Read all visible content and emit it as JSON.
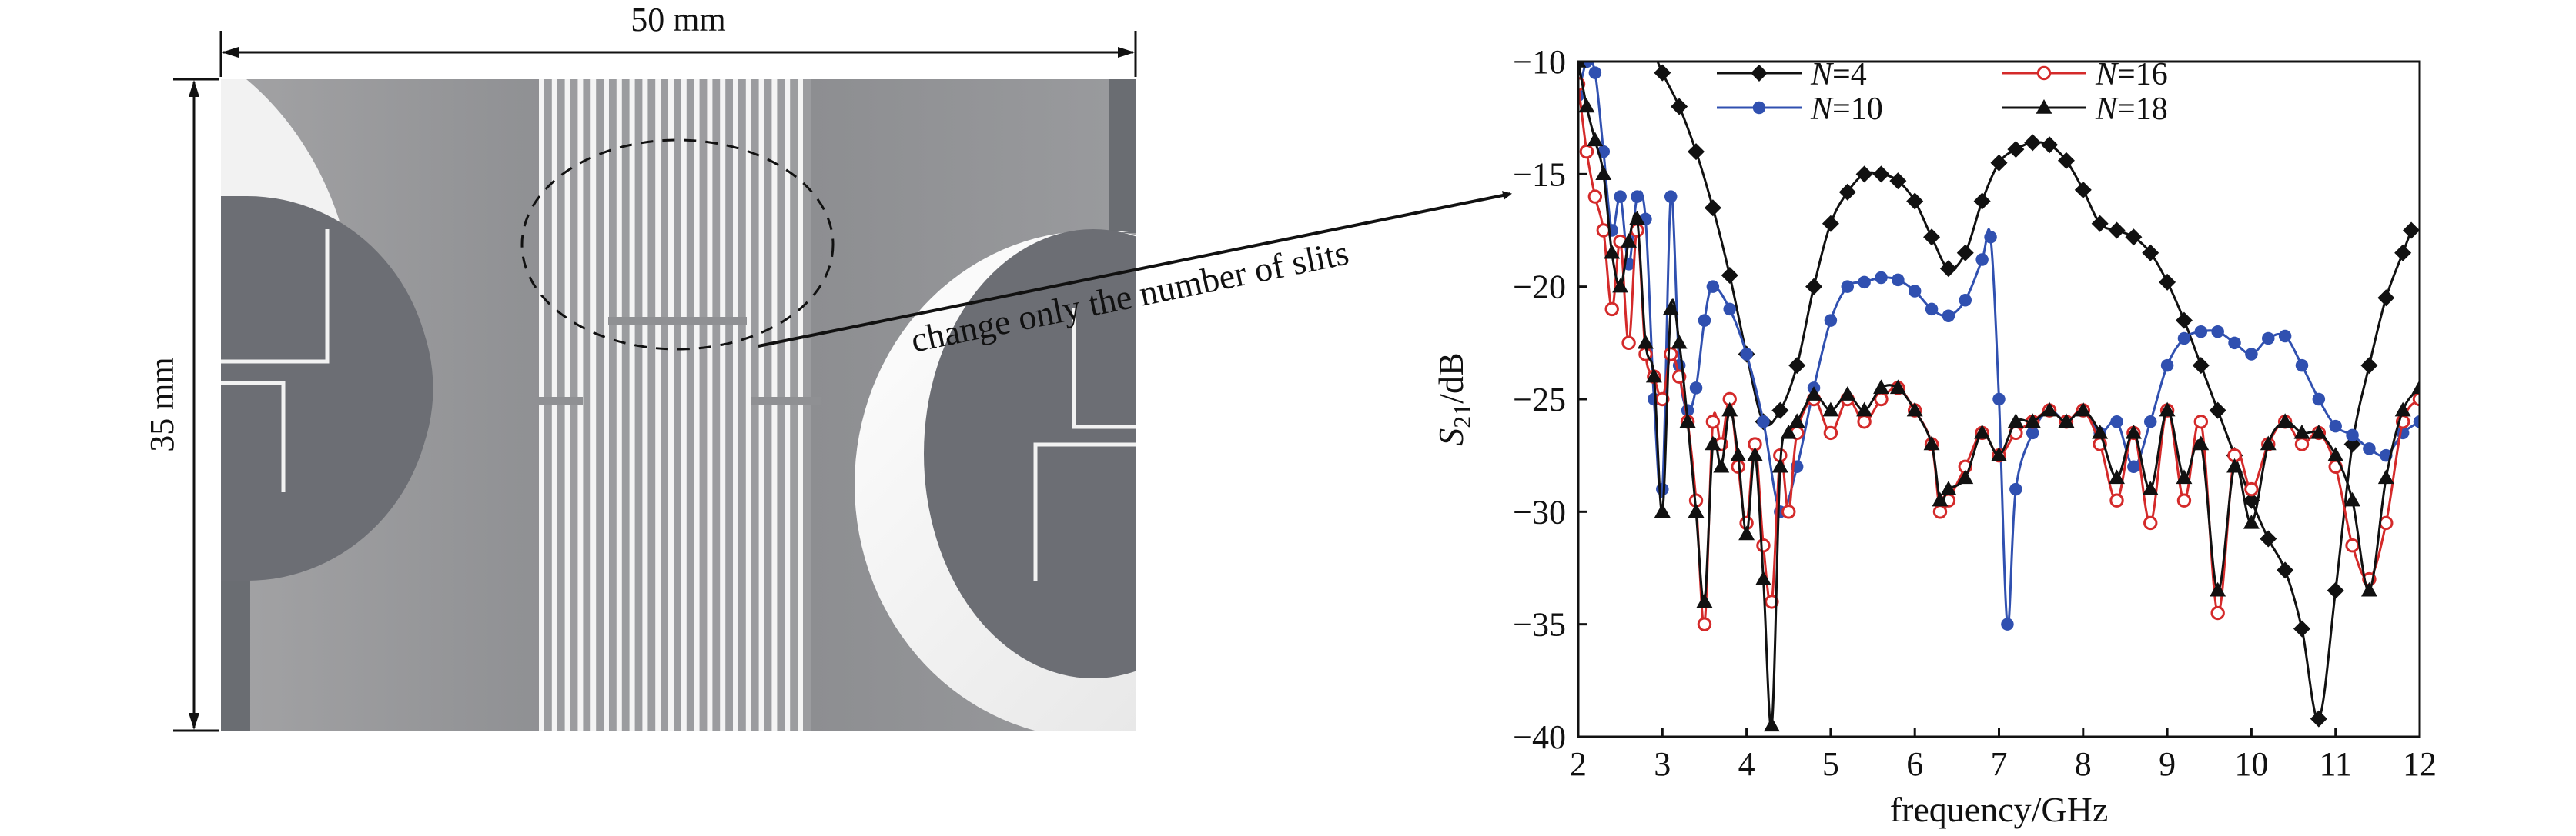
{
  "antenna": {
    "width_label": "50 mm",
    "height_label": "35 mm",
    "annotation": "change only the number of slits"
  },
  "chart_data": {
    "type": "line",
    "title": "",
    "xlabel": "frequency/GHz",
    "ylabel": {
      "base": "S",
      "sub": "21",
      "unit": "/dB"
    },
    "xlim": [
      2,
      12
    ],
    "ylim": [
      -40,
      -10
    ],
    "xticks": [
      2,
      3,
      4,
      5,
      6,
      7,
      8,
      9,
      10,
      11,
      12
    ],
    "yticks": [
      -10,
      -15,
      -20,
      -25,
      -30,
      -35,
      -40
    ],
    "grid": false,
    "legend": {
      "position": "top",
      "columns": 2
    },
    "series": [
      {
        "name": "N=4",
        "label_var": "N",
        "label_val": "=4",
        "color": "#111111",
        "marker": "diamond-filled",
        "x": [
          2.0,
          2.1,
          2.2,
          2.3,
          2.4,
          2.6,
          2.8,
          3.0,
          3.2,
          3.4,
          3.6,
          3.8,
          4.0,
          4.2,
          4.4,
          4.6,
          4.8,
          5.0,
          5.2,
          5.4,
          5.6,
          5.8,
          6.0,
          6.2,
          6.4,
          6.6,
          6.8,
          7.0,
          7.2,
          7.4,
          7.6,
          7.8,
          8.0,
          8.2,
          8.4,
          8.6,
          8.8,
          9.0,
          9.2,
          9.4,
          9.6,
          9.8,
          10.0,
          10.2,
          10.4,
          10.6,
          10.8,
          11.0,
          11.2,
          11.4,
          11.6,
          11.8,
          11.9
        ],
        "y": [
          -9.5,
          -8.8,
          -8.3,
          -8.0,
          -7.8,
          -8.0,
          -8.8,
          -10.5,
          -12.0,
          -14.0,
          -16.5,
          -19.5,
          -23.0,
          -26.0,
          -25.5,
          -23.5,
          -20.0,
          -17.2,
          -15.8,
          -15.0,
          -15.0,
          -15.3,
          -16.2,
          -17.8,
          -19.2,
          -18.5,
          -16.2,
          -14.5,
          -13.9,
          -13.6,
          -13.7,
          -14.4,
          -15.7,
          -17.2,
          -17.5,
          -17.8,
          -18.5,
          -19.8,
          -21.5,
          -23.5,
          -25.5,
          -27.5,
          -29.5,
          -31.2,
          -32.6,
          -35.2,
          -39.2,
          -33.5,
          -27.0,
          -23.5,
          -20.5,
          -18.5,
          -17.5
        ]
      },
      {
        "name": "N=10",
        "label_var": "N",
        "label_val": "=10",
        "color": "#3050b0",
        "marker": "circle-filled",
        "x": [
          2.0,
          2.1,
          2.2,
          2.3,
          2.4,
          2.5,
          2.6,
          2.7,
          2.8,
          2.9,
          3.0,
          3.1,
          3.2,
          3.3,
          3.4,
          3.5,
          3.6,
          3.8,
          4.0,
          4.2,
          4.4,
          4.6,
          4.8,
          5.0,
          5.2,
          5.4,
          5.6,
          5.8,
          6.0,
          6.2,
          6.4,
          6.6,
          6.8,
          6.9,
          7.0,
          7.1,
          7.2,
          7.4,
          7.6,
          7.8,
          8.0,
          8.2,
          8.4,
          8.6,
          8.8,
          9.0,
          9.2,
          9.4,
          9.6,
          9.8,
          10.0,
          10.2,
          10.4,
          10.6,
          10.8,
          11.0,
          11.2,
          11.4,
          11.6,
          11.8,
          12.0
        ],
        "y": [
          -11.5,
          -10.0,
          -10.5,
          -14.0,
          -17.5,
          -16.0,
          -19.0,
          -16.0,
          -17.0,
          -25.0,
          -29.0,
          -16.0,
          -23.5,
          -25.5,
          -24.5,
          -21.5,
          -20.0,
          -21.0,
          -23.0,
          -26.0,
          -30.0,
          -28.0,
          -24.5,
          -21.5,
          -20.0,
          -19.8,
          -19.6,
          -19.7,
          -20.2,
          -21.0,
          -21.3,
          -20.6,
          -18.8,
          -17.8,
          -25.0,
          -35.0,
          -29.0,
          -26.5,
          -25.5,
          -26.0,
          -25.5,
          -26.5,
          -26.0,
          -28.0,
          -26.0,
          -23.5,
          -22.3,
          -22.0,
          -22.0,
          -22.5,
          -23.0,
          -22.3,
          -22.2,
          -23.5,
          -25.0,
          -26.2,
          -26.6,
          -27.2,
          -27.5,
          -26.5,
          -26.0
        ]
      },
      {
        "name": "N=16",
        "label_var": "N",
        "label_val": "=16",
        "color": "#d42a2a",
        "marker": "circle-open",
        "x": [
          2.0,
          2.1,
          2.2,
          2.3,
          2.4,
          2.5,
          2.6,
          2.7,
          2.8,
          2.9,
          3.0,
          3.1,
          3.2,
          3.3,
          3.4,
          3.5,
          3.6,
          3.7,
          3.8,
          3.9,
          4.0,
          4.1,
          4.2,
          4.3,
          4.4,
          4.5,
          4.6,
          4.8,
          5.0,
          5.2,
          5.4,
          5.6,
          5.8,
          6.0,
          6.2,
          6.3,
          6.4,
          6.6,
          6.8,
          7.0,
          7.2,
          7.4,
          7.6,
          7.8,
          8.0,
          8.2,
          8.4,
          8.6,
          8.8,
          9.0,
          9.2,
          9.4,
          9.6,
          9.8,
          10.0,
          10.2,
          10.4,
          10.6,
          10.8,
          11.0,
          11.2,
          11.4,
          11.6,
          11.8,
          12.0
        ],
        "y": [
          -11.0,
          -14.0,
          -16.0,
          -17.5,
          -21.0,
          -18.0,
          -22.5,
          -17.5,
          -23.0,
          -24.0,
          -25.0,
          -23.0,
          -24.0,
          -26.0,
          -29.5,
          -35.0,
          -26.0,
          -27.0,
          -25.0,
          -28.0,
          -30.5,
          -27.0,
          -31.5,
          -34.0,
          -27.5,
          -30.0,
          -26.5,
          -25.0,
          -26.5,
          -25.0,
          -26.0,
          -25.0,
          -24.5,
          -25.5,
          -27.0,
          -30.0,
          -29.5,
          -28.0,
          -26.5,
          -27.5,
          -26.5,
          -26.0,
          -25.5,
          -26.0,
          -25.5,
          -27.0,
          -29.5,
          -26.5,
          -30.5,
          -25.5,
          -29.5,
          -26.0,
          -34.5,
          -27.5,
          -29.0,
          -27.0,
          -26.0,
          -27.0,
          -26.5,
          -28.0,
          -31.5,
          -33.0,
          -30.5,
          -26.0,
          -25.0
        ]
      },
      {
        "name": "N=18",
        "label_var": "N",
        "label_val": "=18",
        "color": "#111111",
        "marker": "triangle-filled",
        "x": [
          2.0,
          2.1,
          2.2,
          2.3,
          2.4,
          2.5,
          2.6,
          2.7,
          2.8,
          2.9,
          3.0,
          3.1,
          3.2,
          3.3,
          3.4,
          3.5,
          3.6,
          3.7,
          3.8,
          3.9,
          4.0,
          4.1,
          4.2,
          4.3,
          4.4,
          4.5,
          4.6,
          4.8,
          5.0,
          5.2,
          5.4,
          5.6,
          5.8,
          6.0,
          6.2,
          6.3,
          6.4,
          6.6,
          6.8,
          7.0,
          7.2,
          7.4,
          7.6,
          7.8,
          8.0,
          8.2,
          8.4,
          8.6,
          8.8,
          9.0,
          9.2,
          9.4,
          9.6,
          9.8,
          10.0,
          10.2,
          10.4,
          10.6,
          10.8,
          11.0,
          11.2,
          11.4,
          11.6,
          11.8,
          12.0
        ],
        "y": [
          -10.0,
          -12.0,
          -13.5,
          -15.0,
          -18.5,
          -20.0,
          -18.0,
          -17.0,
          -22.5,
          -24.0,
          -30.0,
          -21.0,
          -22.5,
          -26.0,
          -30.0,
          -34.0,
          -27.0,
          -28.0,
          -25.5,
          -27.5,
          -31.0,
          -27.5,
          -33.0,
          -39.5,
          -28.0,
          -26.5,
          -26.0,
          -24.8,
          -25.5,
          -24.8,
          -25.5,
          -24.5,
          -24.5,
          -25.5,
          -27.0,
          -29.5,
          -29.0,
          -28.5,
          -26.5,
          -27.5,
          -26.0,
          -26.0,
          -25.5,
          -26.0,
          -25.5,
          -26.5,
          -28.5,
          -26.5,
          -29.0,
          -25.5,
          -28.5,
          -27.0,
          -33.5,
          -28.0,
          -30.5,
          -27.0,
          -26.0,
          -26.5,
          -26.5,
          -27.5,
          -29.5,
          -33.5,
          -28.5,
          -25.5,
          -24.5
        ]
      }
    ]
  }
}
